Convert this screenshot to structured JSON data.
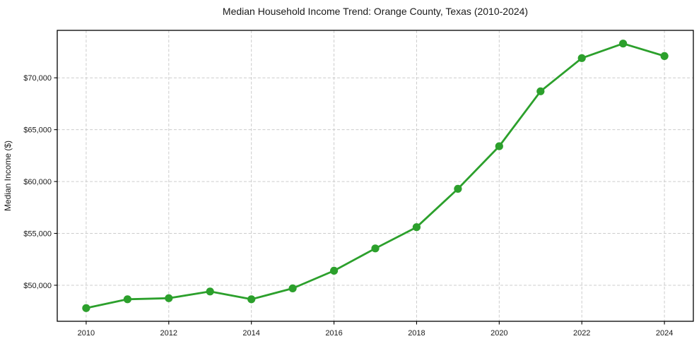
{
  "figure": {
    "title": "Median Household Income Trend: Orange County, Texas (2010-2024)"
  },
  "chart_data": {
    "type": "line",
    "title": "Median Household Income Trend: Orange County, Texas (2010-2024)",
    "xlabel": "",
    "ylabel": "Median Income ($)",
    "x": [
      2010,
      2011,
      2012,
      2013,
      2014,
      2015,
      2016,
      2017,
      2018,
      2019,
      2020,
      2021,
      2022,
      2023,
      2024
    ],
    "values": [
      47800,
      48650,
      48750,
      49400,
      48650,
      49700,
      51400,
      53550,
      55600,
      59300,
      63400,
      68700,
      71900,
      73300,
      72100
    ],
    "xticks": [
      2010,
      2012,
      2014,
      2016,
      2018,
      2020,
      2022,
      2024
    ],
    "xtick_labels": [
      "2010",
      "2012",
      "2014",
      "2016",
      "2018",
      "2020",
      "2022",
      "2024"
    ],
    "yticks": [
      50000,
      55000,
      60000,
      65000,
      70000
    ],
    "ytick_labels": [
      "$50,000",
      "$55,000",
      "$60,000",
      "$65,000",
      "$70,000"
    ],
    "xlim": [
      2009.3,
      2024.7
    ],
    "ylim": [
      46525,
      74575
    ],
    "grid": true,
    "grid_style": "dashed",
    "legend": "none",
    "colors": {
      "line": "#2ca02c",
      "marker": "#2ca02c",
      "grid": "#cccccc",
      "spine": "#000000",
      "text": "#1a1a1a",
      "background": "#ffffff"
    },
    "line_width": 2.8,
    "marker_radius": 5.6
  }
}
